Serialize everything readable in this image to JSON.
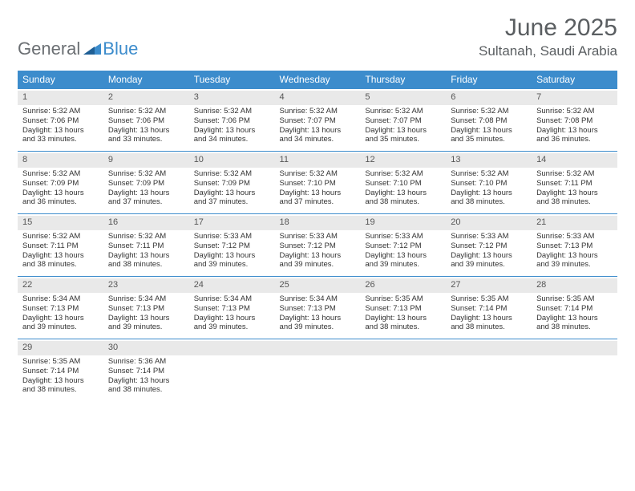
{
  "logo": {
    "text1": "General",
    "text2": "Blue"
  },
  "title": "June 2025",
  "location": "Sultanah, Saudi Arabia",
  "colors": {
    "header_bg": "#3c8ccc",
    "header_text": "#ffffff",
    "daynum_bg": "#e9e9e9",
    "divider": "#3c8ccc",
    "body_text": "#333333",
    "title_text": "#5a5e61"
  },
  "dayNames": [
    "Sunday",
    "Monday",
    "Tuesday",
    "Wednesday",
    "Thursday",
    "Friday",
    "Saturday"
  ],
  "weeks": [
    [
      {
        "n": "1",
        "sr": "5:32 AM",
        "ss": "7:06 PM",
        "dl": "13 hours and 33 minutes."
      },
      {
        "n": "2",
        "sr": "5:32 AM",
        "ss": "7:06 PM",
        "dl": "13 hours and 33 minutes."
      },
      {
        "n": "3",
        "sr": "5:32 AM",
        "ss": "7:06 PM",
        "dl": "13 hours and 34 minutes."
      },
      {
        "n": "4",
        "sr": "5:32 AM",
        "ss": "7:07 PM",
        "dl": "13 hours and 34 minutes."
      },
      {
        "n": "5",
        "sr": "5:32 AM",
        "ss": "7:07 PM",
        "dl": "13 hours and 35 minutes."
      },
      {
        "n": "6",
        "sr": "5:32 AM",
        "ss": "7:08 PM",
        "dl": "13 hours and 35 minutes."
      },
      {
        "n": "7",
        "sr": "5:32 AM",
        "ss": "7:08 PM",
        "dl": "13 hours and 36 minutes."
      }
    ],
    [
      {
        "n": "8",
        "sr": "5:32 AM",
        "ss": "7:09 PM",
        "dl": "13 hours and 36 minutes."
      },
      {
        "n": "9",
        "sr": "5:32 AM",
        "ss": "7:09 PM",
        "dl": "13 hours and 37 minutes."
      },
      {
        "n": "10",
        "sr": "5:32 AM",
        "ss": "7:09 PM",
        "dl": "13 hours and 37 minutes."
      },
      {
        "n": "11",
        "sr": "5:32 AM",
        "ss": "7:10 PM",
        "dl": "13 hours and 37 minutes."
      },
      {
        "n": "12",
        "sr": "5:32 AM",
        "ss": "7:10 PM",
        "dl": "13 hours and 38 minutes."
      },
      {
        "n": "13",
        "sr": "5:32 AM",
        "ss": "7:10 PM",
        "dl": "13 hours and 38 minutes."
      },
      {
        "n": "14",
        "sr": "5:32 AM",
        "ss": "7:11 PM",
        "dl": "13 hours and 38 minutes."
      }
    ],
    [
      {
        "n": "15",
        "sr": "5:32 AM",
        "ss": "7:11 PM",
        "dl": "13 hours and 38 minutes."
      },
      {
        "n": "16",
        "sr": "5:32 AM",
        "ss": "7:11 PM",
        "dl": "13 hours and 38 minutes."
      },
      {
        "n": "17",
        "sr": "5:33 AM",
        "ss": "7:12 PM",
        "dl": "13 hours and 39 minutes."
      },
      {
        "n": "18",
        "sr": "5:33 AM",
        "ss": "7:12 PM",
        "dl": "13 hours and 39 minutes."
      },
      {
        "n": "19",
        "sr": "5:33 AM",
        "ss": "7:12 PM",
        "dl": "13 hours and 39 minutes."
      },
      {
        "n": "20",
        "sr": "5:33 AM",
        "ss": "7:12 PM",
        "dl": "13 hours and 39 minutes."
      },
      {
        "n": "21",
        "sr": "5:33 AM",
        "ss": "7:13 PM",
        "dl": "13 hours and 39 minutes."
      }
    ],
    [
      {
        "n": "22",
        "sr": "5:34 AM",
        "ss": "7:13 PM",
        "dl": "13 hours and 39 minutes."
      },
      {
        "n": "23",
        "sr": "5:34 AM",
        "ss": "7:13 PM",
        "dl": "13 hours and 39 minutes."
      },
      {
        "n": "24",
        "sr": "5:34 AM",
        "ss": "7:13 PM",
        "dl": "13 hours and 39 minutes."
      },
      {
        "n": "25",
        "sr": "5:34 AM",
        "ss": "7:13 PM",
        "dl": "13 hours and 39 minutes."
      },
      {
        "n": "26",
        "sr": "5:35 AM",
        "ss": "7:13 PM",
        "dl": "13 hours and 38 minutes."
      },
      {
        "n": "27",
        "sr": "5:35 AM",
        "ss": "7:14 PM",
        "dl": "13 hours and 38 minutes."
      },
      {
        "n": "28",
        "sr": "5:35 AM",
        "ss": "7:14 PM",
        "dl": "13 hours and 38 minutes."
      }
    ],
    [
      {
        "n": "29",
        "sr": "5:35 AM",
        "ss": "7:14 PM",
        "dl": "13 hours and 38 minutes."
      },
      {
        "n": "30",
        "sr": "5:36 AM",
        "ss": "7:14 PM",
        "dl": "13 hours and 38 minutes."
      },
      {
        "n": "",
        "empty": true
      },
      {
        "n": "",
        "empty": true
      },
      {
        "n": "",
        "empty": true
      },
      {
        "n": "",
        "empty": true
      },
      {
        "n": "",
        "empty": true
      }
    ]
  ],
  "labels": {
    "sunrise": "Sunrise: ",
    "sunset": "Sunset: ",
    "daylight": "Daylight: "
  }
}
